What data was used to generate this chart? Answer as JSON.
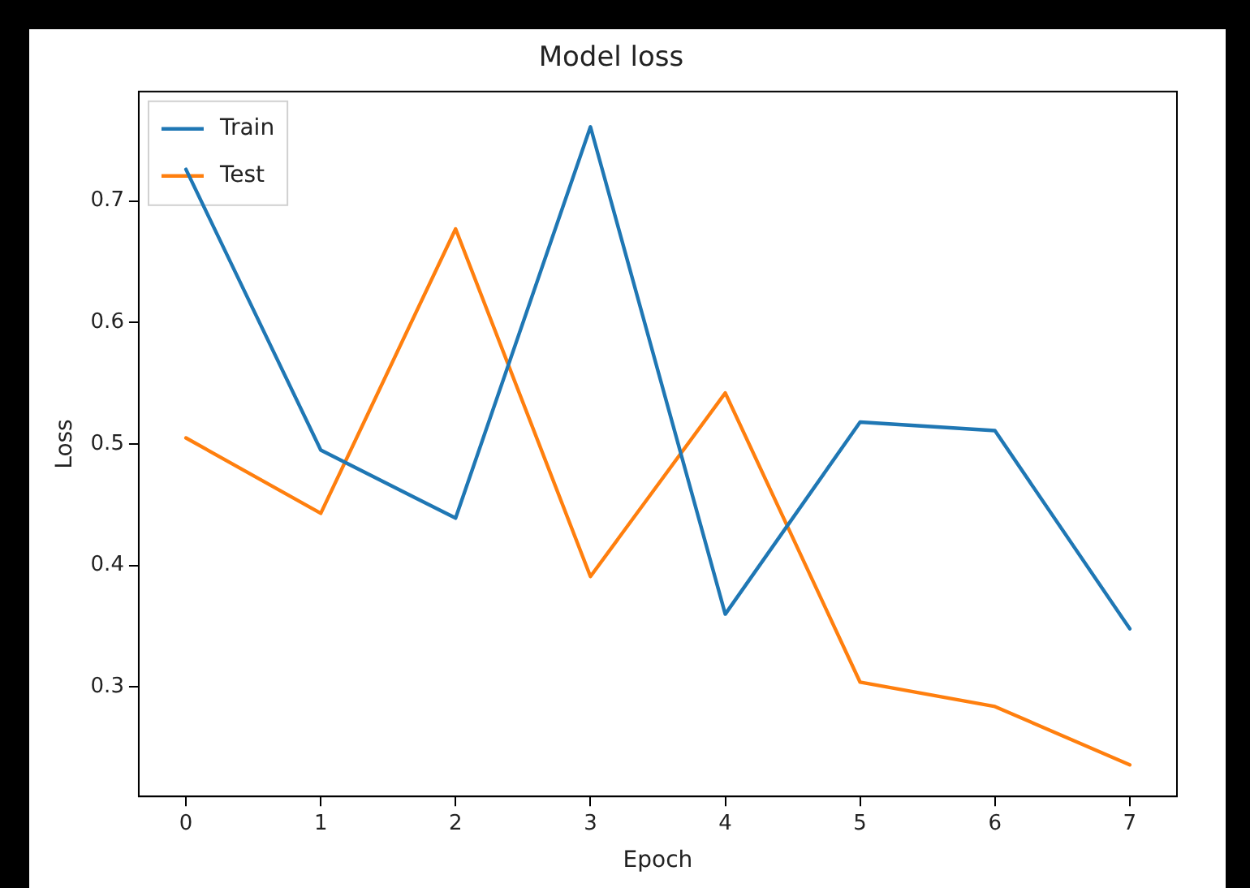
{
  "chart_data": {
    "type": "line",
    "title": "Model loss",
    "xlabel": "Epoch",
    "ylabel": "Loss",
    "x": [
      0,
      1,
      2,
      3,
      4,
      5,
      6,
      7
    ],
    "series": [
      {
        "name": "Train",
        "color": "#1f77b4",
        "values": [
          0.726,
          0.495,
          0.439,
          0.761,
          0.36,
          0.518,
          0.511,
          0.348
        ]
      },
      {
        "name": "Test",
        "color": "#ff7f0e",
        "values": [
          0.505,
          0.443,
          0.677,
          0.391,
          0.542,
          0.304,
          0.284,
          0.236
        ]
      }
    ],
    "xlim": [
      -0.35,
      7.35
    ],
    "xticks": [
      0,
      1,
      2,
      3,
      4,
      5,
      6,
      7
    ],
    "ylim": [
      0.21,
      0.79
    ],
    "yticks": [
      0.3,
      0.4,
      0.5,
      0.6,
      0.7
    ],
    "grid": false,
    "legend": "top left",
    "marker": "none",
    "line_style": "solid"
  }
}
